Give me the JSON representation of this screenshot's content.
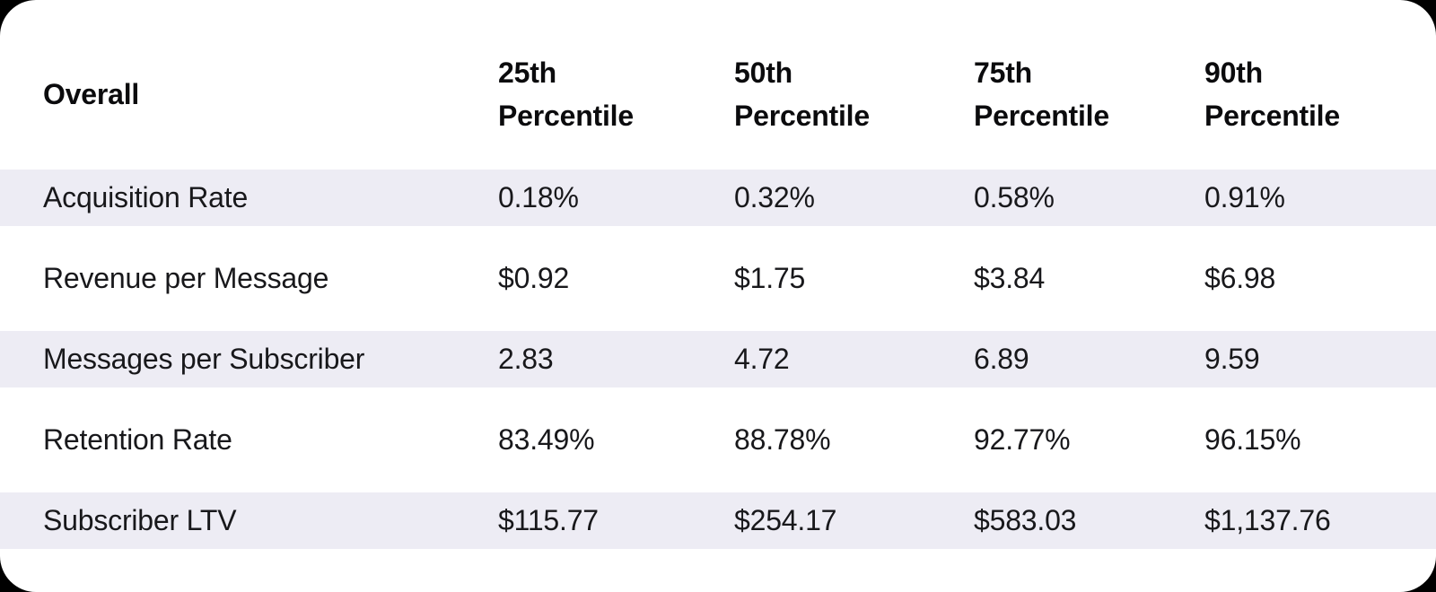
{
  "chart_data": {
    "type": "table",
    "title": "Overall percentile metrics table",
    "columns": [
      "Overall",
      "25th Percentile",
      "50th Percentile",
      "75th Percentile",
      "90th Percentile"
    ],
    "rows": [
      {
        "label": "Acquisition Rate",
        "values": [
          "0.18%",
          "0.32%",
          "0.58%",
          "0.91%"
        ]
      },
      {
        "label": "Revenue per Message",
        "values": [
          "$0.92",
          "$1.75",
          "$3.84",
          "$6.98"
        ]
      },
      {
        "label": "Messages per Subscriber",
        "values": [
          "2.83",
          "4.72",
          "6.89",
          "9.59"
        ]
      },
      {
        "label": "Retention Rate",
        "values": [
          "83.49%",
          "88.78%",
          "92.77%",
          "96.15%"
        ]
      },
      {
        "label": "Subscriber LTV",
        "values": [
          "$115.77",
          "$254.17",
          "$583.03",
          "$1,137.76"
        ]
      }
    ],
    "layout": {
      "striped_rows": "odd",
      "grid": "off",
      "header_weight": "bold"
    }
  },
  "colors": {
    "page_bg": "#000000",
    "card_bg": "#ffffff",
    "stripe": "#edecf4",
    "text": "#18181b",
    "header_text": "#0b0b0d"
  }
}
